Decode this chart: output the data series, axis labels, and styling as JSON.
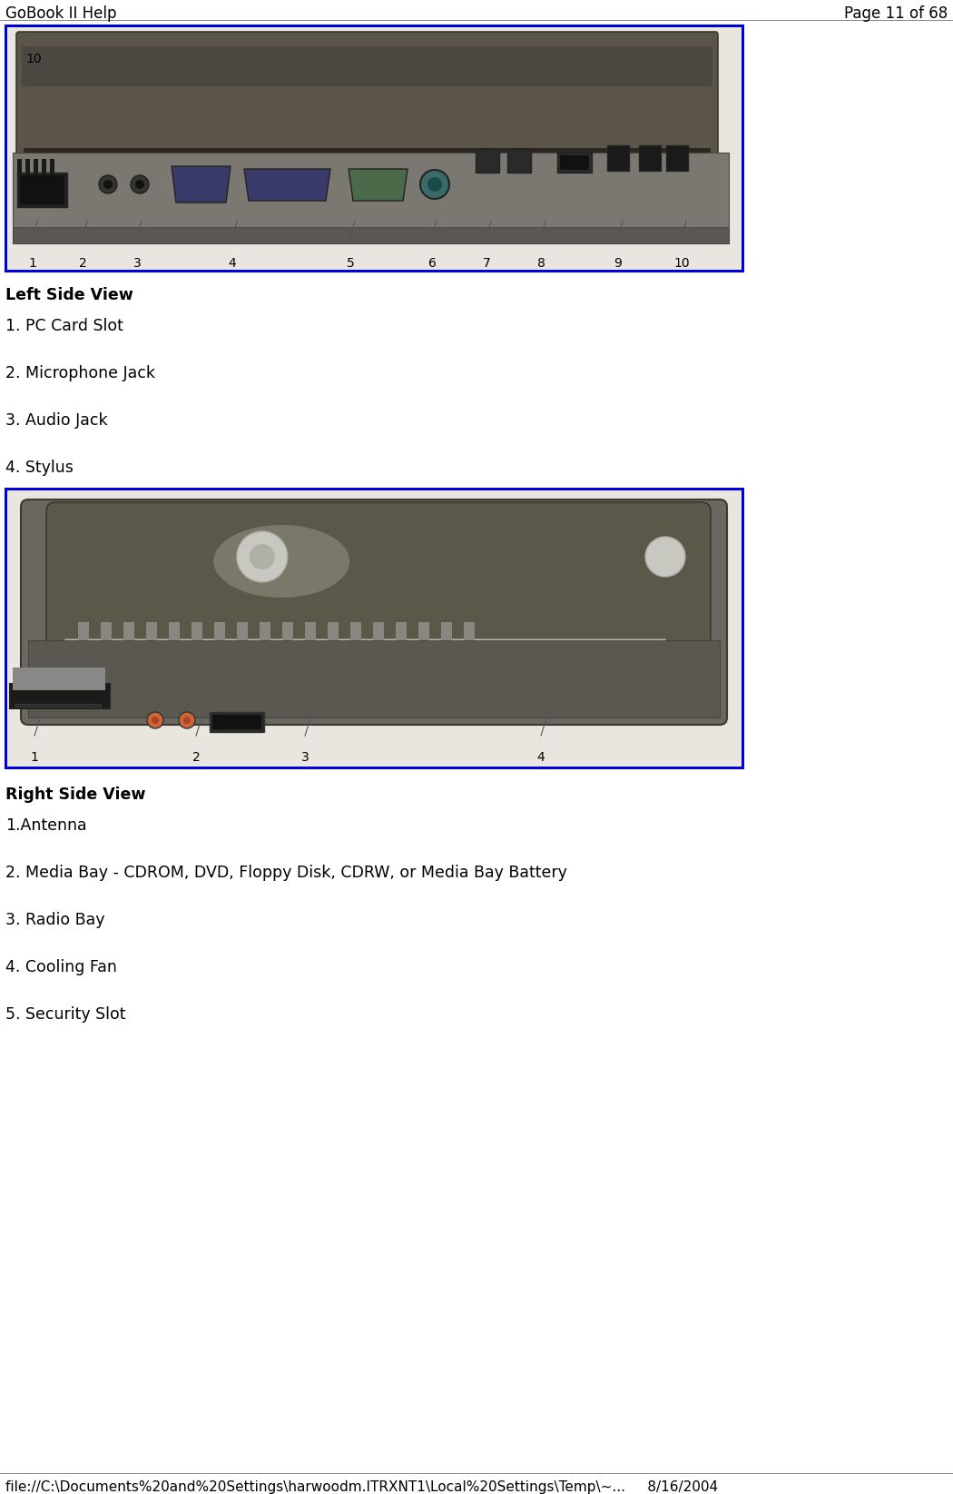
{
  "header_left": "GoBook II Help",
  "header_right": "Page 11 of 68",
  "footer_text": "file://C:\\Documents%20and%20Settings\\harwoodm.ITRXNT1\\Local%20Settings\\Temp\\~...     8/16/2004",
  "section1_title": "Left Side View",
  "section1_items": [
    "1. PC Card Slot",
    "2. Microphone Jack",
    "3. Audio Jack",
    "4. Stylus"
  ],
  "section2_title": "Right Side View",
  "section2_items": [
    "1.Antenna",
    "2. Media Bay - CDROM, DVD, Floppy Disk, CDRW, or Media Bay Battery",
    "3. Radio Bay",
    "4. Cooling Fan",
    "5. Security Slot"
  ],
  "bg_color": "#ffffff",
  "text_color": "#000000",
  "header_font_size": 12,
  "title_font_size": 12.5,
  "body_font_size": 12.5,
  "footer_font_size": 11,
  "border_color": "#0000dd"
}
